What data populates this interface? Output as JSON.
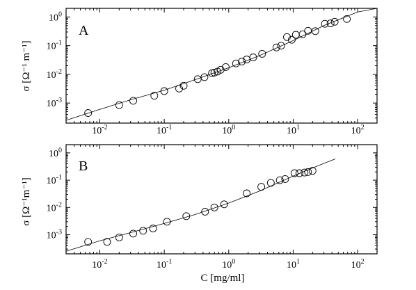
{
  "chart_data": [
    {
      "type": "scatter",
      "panel_label": "A",
      "xlabel": "",
      "ylabel": "σ  [Ω⁻¹ m⁻¹]",
      "xscale": "log",
      "yscale": "log",
      "xlim": [
        0.003,
        200
      ],
      "ylim": [
        0.0002,
        2
      ],
      "x_tick_labels": [
        "10⁻²",
        "10⁻¹",
        "10⁰",
        "10¹",
        "10²"
      ],
      "y_tick_labels": [
        "10⁻³",
        "10⁻²",
        "10⁻¹",
        "10⁰"
      ],
      "series": [
        {
          "marker": "open-circle",
          "x": [
            0.0066,
            0.02,
            0.033,
            0.07,
            0.1,
            0.17,
            0.2,
            0.33,
            0.42,
            0.55,
            0.6,
            0.67,
            0.75,
            0.9,
            1.3,
            1.6,
            1.9,
            2.4,
            3.3,
            5.5,
            6.5,
            8.0,
            9.5,
            11.0,
            14.0,
            17.0,
            22.0,
            31.0,
            38.0,
            44.0,
            68.0
          ],
          "y": [
            0.00045,
            0.00085,
            0.0012,
            0.0018,
            0.0026,
            0.0032,
            0.004,
            0.0068,
            0.008,
            0.011,
            0.0115,
            0.0125,
            0.0145,
            0.018,
            0.024,
            0.028,
            0.033,
            0.039,
            0.052,
            0.087,
            0.1,
            0.2,
            0.16,
            0.24,
            0.25,
            0.33,
            0.32,
            0.58,
            0.6,
            0.68,
            0.85
          ]
        }
      ],
      "fit_line": {
        "x": [
          0.003,
          0.01,
          0.03,
          0.1,
          0.3,
          1,
          3,
          10,
          30,
          100,
          200
        ],
        "y": [
          0.00025,
          0.0006,
          0.0013,
          0.0028,
          0.0065,
          0.017,
          0.045,
          0.15,
          0.5,
          1.5,
          2
        ]
      }
    },
    {
      "type": "scatter",
      "panel_label": "B",
      "xlabel": "C  [mg/ml]",
      "ylabel": "σ [Ω⁻¹m⁻¹]",
      "xscale": "log",
      "yscale": "log",
      "xlim": [
        0.003,
        200
      ],
      "ylim": [
        0.0002,
        2
      ],
      "x_tick_labels": [
        "10⁻²",
        "10⁻¹",
        "10⁰",
        "10¹",
        "10²"
      ],
      "y_tick_labels": [
        "10⁻³",
        "10⁻²",
        "10⁻¹",
        "10⁰"
      ],
      "series": [
        {
          "marker": "open-circle",
          "x": [
            0.0066,
            0.013,
            0.02,
            0.033,
            0.047,
            0.067,
            0.11,
            0.22,
            0.43,
            0.6,
            0.85,
            1.9,
            3.2,
            4.5,
            6.2,
            7.5,
            10.5,
            12.5,
            15.0,
            17.0,
            20.0
          ],
          "y": [
            0.00055,
            0.00055,
            0.0008,
            0.0011,
            0.0014,
            0.0017,
            0.003,
            0.0048,
            0.007,
            0.01,
            0.013,
            0.033,
            0.057,
            0.08,
            0.1,
            0.11,
            0.18,
            0.18,
            0.19,
            0.2,
            0.22
          ]
        }
      ],
      "fit_line": {
        "x": [
          0.003,
          0.01,
          0.03,
          0.1,
          0.3,
          1,
          3,
          10,
          20,
          45
        ],
        "y": [
          0.00025,
          0.0006,
          0.0012,
          0.0026,
          0.0055,
          0.0145,
          0.04,
          0.14,
          0.28,
          0.6
        ]
      }
    }
  ]
}
